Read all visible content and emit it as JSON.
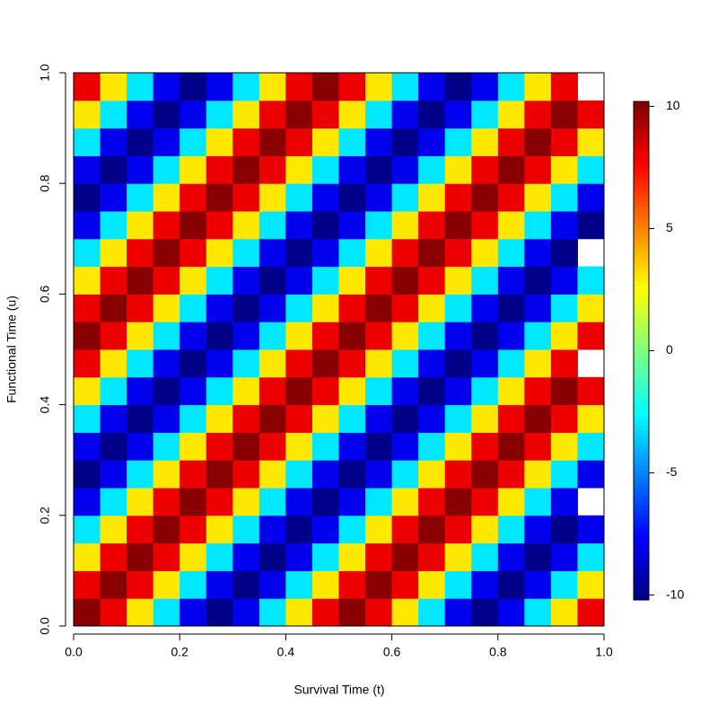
{
  "chart_data": {
    "type": "heatmap",
    "x_label": "Survival Time (t)",
    "y_label": "Functional Time (u)",
    "x": [
      0.025,
      0.075,
      0.125,
      0.175,
      0.225,
      0.275,
      0.325,
      0.375,
      0.425,
      0.475,
      0.525,
      0.575,
      0.625,
      0.675,
      0.725,
      0.775,
      0.825,
      0.875,
      0.925,
      0.975
    ],
    "y": [
      0.025,
      0.075,
      0.125,
      0.175,
      0.225,
      0.275,
      0.325,
      0.375,
      0.425,
      0.475,
      0.525,
      0.575,
      0.625,
      0.675,
      0.725,
      0.775,
      0.825,
      0.875,
      0.925,
      0.975
    ],
    "z": [
      [
        10,
        8,
        3,
        -3,
        -8,
        -10,
        -8,
        -3,
        3,
        8,
        10,
        8,
        3,
        -3,
        -8,
        -10,
        -8,
        -3,
        3,
        8
      ],
      [
        8,
        10,
        8,
        3,
        -3,
        -8,
        -10,
        -8,
        -3,
        3,
        8,
        10,
        8,
        3,
        -3,
        -8,
        -10,
        -8,
        -3,
        3
      ],
      [
        3,
        8,
        10,
        8,
        3,
        -3,
        -8,
        -10,
        -8,
        -3,
        3,
        8,
        10,
        8,
        3,
        -3,
        -8,
        -10,
        -8,
        -3
      ],
      [
        -3,
        3,
        8,
        10,
        8,
        3,
        -3,
        -8,
        -10,
        -8,
        -3,
        3,
        8,
        10,
        8,
        3,
        -3,
        -8,
        -10,
        -8
      ],
      [
        -8,
        -3,
        3,
        8,
        10,
        8,
        3,
        -3,
        -8,
        -10,
        -8,
        -3,
        3,
        8,
        10,
        8,
        3,
        -3,
        -8,
        null
      ],
      [
        -10,
        -8,
        -3,
        3,
        8,
        10,
        8,
        3,
        -3,
        -8,
        -10,
        -8,
        -3,
        3,
        8,
        10,
        8,
        3,
        -3,
        -8
      ],
      [
        -8,
        -10,
        -8,
        -3,
        3,
        8,
        10,
        8,
        3,
        -3,
        -8,
        -10,
        -8,
        -3,
        3,
        8,
        10,
        8,
        3,
        -3
      ],
      [
        -3,
        -8,
        -10,
        -8,
        -3,
        3,
        8,
        10,
        8,
        3,
        -3,
        -8,
        -10,
        -8,
        -3,
        3,
        8,
        10,
        8,
        3
      ],
      [
        3,
        -3,
        -8,
        -10,
        -8,
        -3,
        3,
        8,
        10,
        8,
        3,
        -3,
        -8,
        -10,
        -8,
        -3,
        3,
        8,
        10,
        8
      ],
      [
        8,
        3,
        -3,
        -8,
        -10,
        -8,
        -3,
        3,
        8,
        10,
        8,
        3,
        -3,
        -8,
        -10,
        -8,
        -3,
        3,
        8,
        null
      ],
      [
        10,
        8,
        3,
        -3,
        -8,
        -10,
        -8,
        -3,
        3,
        8,
        10,
        8,
        3,
        -3,
        -8,
        -10,
        -8,
        -3,
        3,
        8
      ],
      [
        8,
        10,
        8,
        3,
        -3,
        -8,
        -10,
        -8,
        -3,
        3,
        8,
        10,
        8,
        3,
        -3,
        -8,
        -10,
        -8,
        -3,
        3
      ],
      [
        3,
        8,
        10,
        8,
        3,
        -3,
        -8,
        -10,
        -8,
        -3,
        3,
        8,
        10,
        8,
        3,
        -3,
        -8,
        -10,
        -8,
        -3
      ],
      [
        -3,
        3,
        8,
        10,
        8,
        3,
        -3,
        -8,
        -10,
        -8,
        -3,
        3,
        8,
        10,
        8,
        3,
        -3,
        -8,
        -10,
        null
      ],
      [
        -8,
        -3,
        3,
        8,
        10,
        8,
        3,
        -3,
        -8,
        -10,
        -8,
        -3,
        3,
        8,
        10,
        8,
        3,
        -3,
        -8,
        -10
      ],
      [
        -10,
        -8,
        -3,
        3,
        8,
        10,
        8,
        3,
        -3,
        -8,
        -10,
        -8,
        -3,
        3,
        8,
        10,
        8,
        3,
        -3,
        -8
      ],
      [
        -8,
        -10,
        -8,
        -3,
        3,
        8,
        10,
        8,
        3,
        -3,
        -8,
        -10,
        -8,
        -3,
        3,
        8,
        10,
        8,
        3,
        -3
      ],
      [
        -3,
        -8,
        -10,
        -8,
        -3,
        3,
        8,
        10,
        8,
        3,
        -3,
        -8,
        -10,
        -8,
        -3,
        3,
        8,
        10,
        8,
        3
      ],
      [
        3,
        -3,
        -8,
        -10,
        -8,
        -3,
        3,
        8,
        10,
        8,
        3,
        -3,
        -8,
        -10,
        -8,
        -3,
        3,
        8,
        10,
        8
      ],
      [
        8,
        3,
        -3,
        -8,
        -10,
        -8,
        -3,
        3,
        8,
        10,
        8,
        3,
        -3,
        -8,
        -10,
        -8,
        -3,
        3,
        8,
        null
      ]
    ],
    "colors": [
      "#00007f",
      "#0000ff",
      "#007fff",
      "#00ffff",
      "#7fff7f",
      "#ffff00",
      "#ff7f00",
      "#ff0000",
      "#7f0000"
    ],
    "xlim": [
      0,
      1
    ],
    "ylim": [
      0,
      1
    ],
    "zlim": [
      -10.2,
      10.2
    ],
    "xticks": [
      {
        "value": 0,
        "label": "0.0"
      },
      0.2,
      0.4,
      0.6,
      0.8,
      {
        "value": 1,
        "label": "1.0"
      }
    ],
    "yticks": [
      {
        "value": 0,
        "label": "0.0"
      },
      0.2,
      0.4,
      0.6,
      0.8,
      {
        "value": 1,
        "label": "1.0"
      }
    ],
    "zticks": [
      -10,
      -5,
      0,
      5,
      10
    ]
  }
}
